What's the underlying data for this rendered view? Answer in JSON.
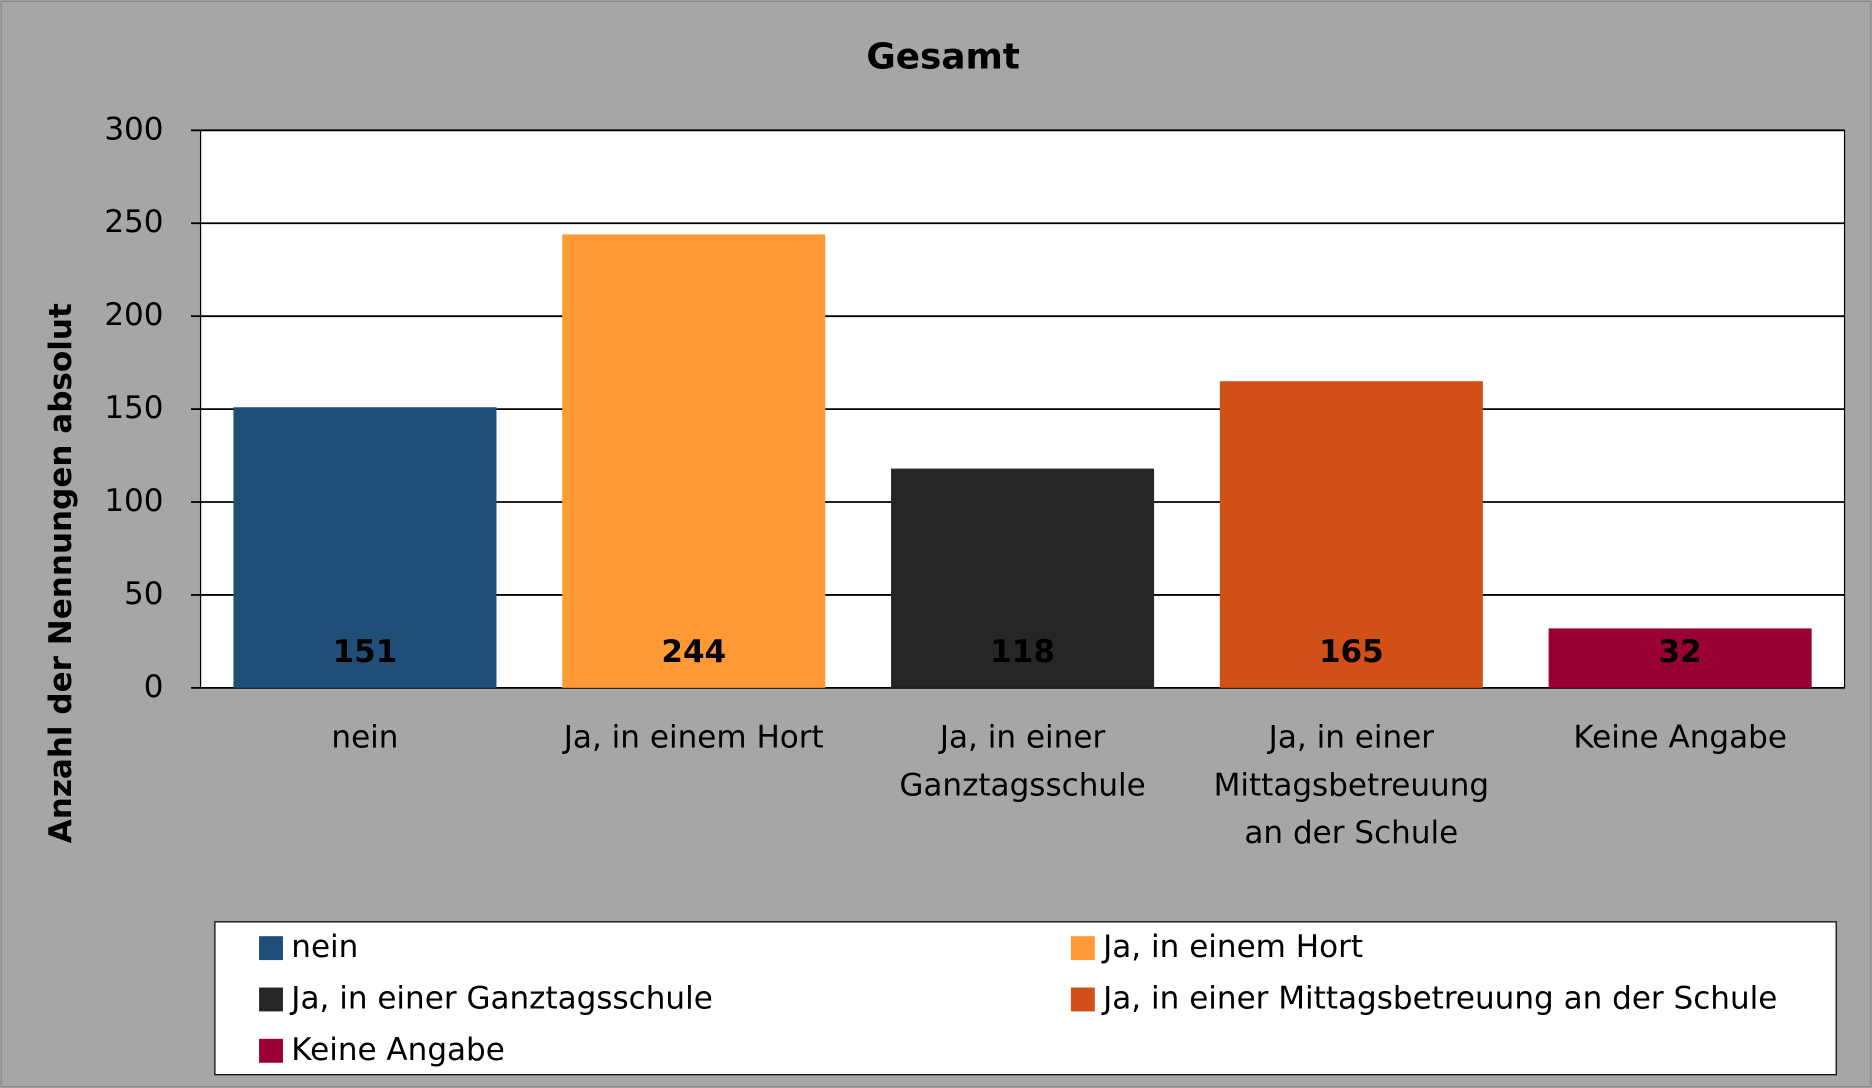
{
  "chart_data": {
    "type": "bar",
    "title": "Gesamt",
    "y_label": "Anzahl der Nennungen absolut",
    "categories": [
      "nein",
      "Ja, in einem Hort",
      "Ja, in einer Ganztagsschule",
      "Ja, in einer Mittagsbetreuung an der Schule",
      "Keine Angabe"
    ],
    "values": [
      151,
      244,
      118,
      165,
      32
    ],
    "colors": [
      "#1f4e79",
      "#fd9a35",
      "#262626",
      "#d15017",
      "#990033"
    ],
    "ylim": [
      0,
      300
    ],
    "yticks": [
      0,
      50,
      100,
      150,
      200,
      250,
      300
    ],
    "grid": true,
    "legend": "bottom"
  }
}
